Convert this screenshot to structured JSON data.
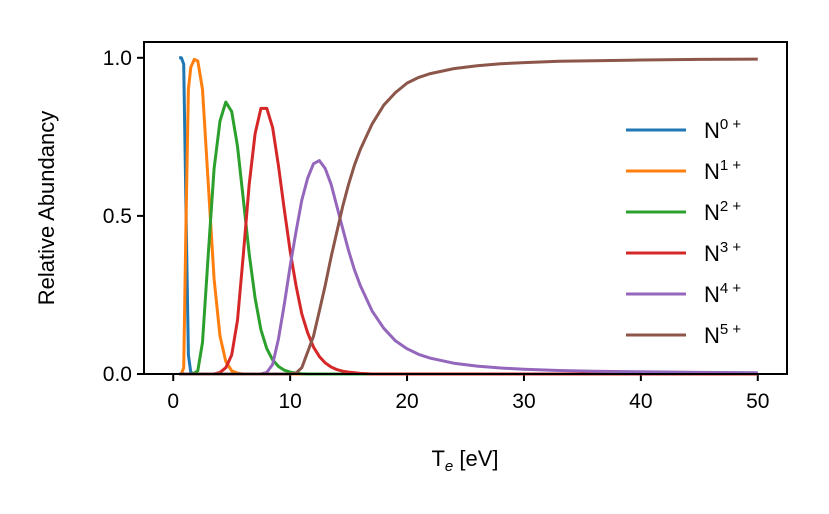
{
  "chart_data": {
    "type": "line",
    "title": "",
    "xlabel": {
      "main": "T",
      "sub": "e",
      "suffix": " [eV]"
    },
    "ylabel": "Relative Abundancy",
    "xlim": [
      -2.5,
      52.5
    ],
    "ylim": [
      0.0,
      1.05
    ],
    "xticks": [
      0,
      10,
      20,
      30,
      40,
      50
    ],
    "xtick_labels": [
      "0",
      "10",
      "20",
      "30",
      "40",
      "50"
    ],
    "yticks": [
      0.0,
      0.5,
      1.0
    ],
    "ytick_labels": [
      "0.0",
      "0.5",
      "1.0"
    ],
    "grid": false,
    "legend_position": "center-right",
    "x": [
      0.5,
      0.7,
      0.9,
      1.1,
      1.3,
      1.5,
      1.8,
      2.1,
      2.5,
      3.0,
      3.5,
      4.0,
      4.5,
      5.0,
      5.5,
      6.0,
      6.5,
      7.0,
      7.5,
      8.0,
      8.5,
      9.0,
      9.5,
      10.0,
      10.5,
      11.0,
      11.5,
      12.0,
      12.5,
      13.0,
      13.5,
      14.0,
      14.5,
      15.0,
      15.5,
      16.0,
      17.0,
      18.0,
      19.0,
      20.0,
      21.0,
      22.0,
      24.0,
      26.0,
      28.0,
      30.0,
      33.0,
      36.0,
      40.0,
      45.0,
      50.0
    ],
    "series": [
      {
        "name": "N",
        "charge": "0 +",
        "color": "#1f77b4",
        "values": [
          1.0,
          1.0,
          0.98,
          0.5,
          0.06,
          0.005,
          0.0,
          0.0,
          0.0,
          0.0,
          0.0,
          0.0,
          0.0,
          0.0,
          0.0,
          0.0,
          0.0,
          0.0,
          0.0,
          0.0,
          0.0,
          0.0,
          0.0,
          0.0,
          0.0,
          0.0,
          0.0,
          0.0,
          0.0,
          0.0,
          0.0,
          0.0,
          0.0,
          0.0,
          0.0,
          0.0,
          0.0,
          0.0,
          0.0,
          0.0,
          0.0,
          0.0,
          0.0,
          0.0,
          0.0,
          0.0,
          0.0,
          0.0,
          0.0,
          0.0,
          0.0
        ]
      },
      {
        "name": "N",
        "charge": "1 +",
        "color": "#ff7f0e",
        "values": [
          0.0,
          0.0,
          0.02,
          0.5,
          0.9,
          0.97,
          0.995,
          0.99,
          0.9,
          0.6,
          0.3,
          0.12,
          0.04,
          0.01,
          0.003,
          0.0,
          0.0,
          0.0,
          0.0,
          0.0,
          0.0,
          0.0,
          0.0,
          0.0,
          0.0,
          0.0,
          0.0,
          0.0,
          0.0,
          0.0,
          0.0,
          0.0,
          0.0,
          0.0,
          0.0,
          0.0,
          0.0,
          0.0,
          0.0,
          0.0,
          0.0,
          0.0,
          0.0,
          0.0,
          0.0,
          0.0,
          0.0,
          0.0,
          0.0,
          0.0,
          0.0
        ]
      },
      {
        "name": "N",
        "charge": "2 +",
        "color": "#2ca02c",
        "values": [
          0.0,
          0.0,
          0.0,
          0.0,
          0.0,
          0.0,
          0.003,
          0.01,
          0.1,
          0.38,
          0.65,
          0.8,
          0.86,
          0.83,
          0.72,
          0.55,
          0.38,
          0.24,
          0.14,
          0.08,
          0.045,
          0.024,
          0.012,
          0.006,
          0.003,
          0.001,
          0.0,
          0.0,
          0.0,
          0.0,
          0.0,
          0.0,
          0.0,
          0.0,
          0.0,
          0.0,
          0.0,
          0.0,
          0.0,
          0.0,
          0.0,
          0.0,
          0.0,
          0.0,
          0.0,
          0.0,
          0.0,
          0.0,
          0.0,
          0.0,
          0.0
        ]
      },
      {
        "name": "N",
        "charge": "3 +",
        "color": "#d62728",
        "values": [
          0.0,
          0.0,
          0.0,
          0.0,
          0.0,
          0.0,
          0.0,
          0.0,
          0.0,
          0.0,
          0.0,
          0.005,
          0.02,
          0.06,
          0.17,
          0.38,
          0.6,
          0.76,
          0.84,
          0.84,
          0.78,
          0.66,
          0.52,
          0.39,
          0.28,
          0.19,
          0.13,
          0.085,
          0.055,
          0.035,
          0.022,
          0.014,
          0.009,
          0.006,
          0.004,
          0.002,
          0.0,
          0.0,
          0.0,
          0.0,
          0.0,
          0.0,
          0.0,
          0.0,
          0.0,
          0.0,
          0.0,
          0.0,
          0.0,
          0.0,
          0.0
        ]
      },
      {
        "name": "N",
        "charge": "4 +",
        "color": "#9467bd",
        "values": [
          0.0,
          0.0,
          0.0,
          0.0,
          0.0,
          0.0,
          0.0,
          0.0,
          0.0,
          0.0,
          0.0,
          0.0,
          0.0,
          0.0,
          0.0,
          0.0,
          0.0,
          0.0,
          0.0,
          0.005,
          0.03,
          0.11,
          0.22,
          0.34,
          0.45,
          0.55,
          0.62,
          0.665,
          0.675,
          0.65,
          0.6,
          0.53,
          0.46,
          0.39,
          0.33,
          0.28,
          0.2,
          0.145,
          0.105,
          0.08,
          0.062,
          0.05,
          0.034,
          0.025,
          0.019,
          0.015,
          0.011,
          0.009,
          0.007,
          0.005,
          0.004
        ]
      },
      {
        "name": "N",
        "charge": "5 +",
        "color": "#8c564b",
        "values": [
          0.0,
          0.0,
          0.0,
          0.0,
          0.0,
          0.0,
          0.0,
          0.0,
          0.0,
          0.0,
          0.0,
          0.0,
          0.0,
          0.0,
          0.0,
          0.0,
          0.0,
          0.0,
          0.0,
          0.0,
          0.0,
          0.0,
          0.0,
          0.0,
          0.003,
          0.02,
          0.07,
          0.12,
          0.2,
          0.28,
          0.37,
          0.45,
          0.53,
          0.6,
          0.66,
          0.71,
          0.79,
          0.85,
          0.89,
          0.92,
          0.938,
          0.95,
          0.966,
          0.975,
          0.981,
          0.985,
          0.989,
          0.991,
          0.993,
          0.995,
          0.996
        ]
      }
    ]
  }
}
